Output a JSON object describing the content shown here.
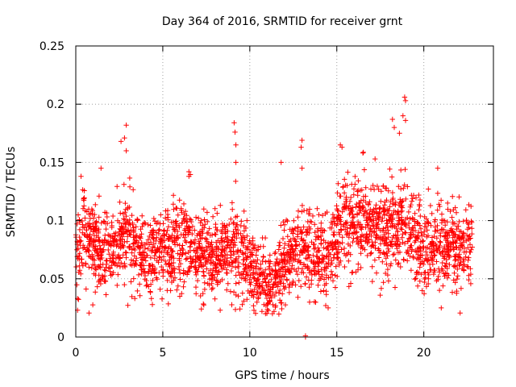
{
  "chart_data": {
    "type": "scatter",
    "title": "Day 364 of 2016, SRMTID for receiver grnt",
    "xlabel": "GPS time / hours",
    "ylabel": "SRMTID / TECUs",
    "xlim": [
      0,
      24
    ],
    "ylim": [
      0,
      0.25
    ],
    "xticks": [
      0,
      5,
      10,
      15,
      20
    ],
    "xtick_labels": [
      "0",
      "5",
      "10",
      "15",
      "20"
    ],
    "yticks": [
      0,
      0.05,
      0.1,
      0.15,
      0.2,
      0.25
    ],
    "ytick_labels": [
      "0",
      "0.05",
      "0.1",
      "0.15",
      "0.2",
      "0.25"
    ],
    "grid": true,
    "marker": "+",
    "color": "#ff0000",
    "series": [
      {
        "name": "SRMTID",
        "profile_hours": [
          0,
          0.5,
          1,
          1.5,
          2,
          2.5,
          3,
          3.5,
          4,
          4.5,
          5,
          5.5,
          6,
          6.5,
          7,
          7.5,
          8,
          8.5,
          9,
          9.5,
          10,
          10.5,
          11,
          11.5,
          12,
          12.5,
          13,
          13.5,
          14,
          14.5,
          15,
          15.5,
          16,
          16.5,
          17,
          17.5,
          18,
          18.5,
          19,
          19.5,
          20,
          20.5,
          21,
          21.5,
          22,
          22.5,
          22.8
        ],
        "profile_mean": [
          0.075,
          0.085,
          0.08,
          0.075,
          0.075,
          0.08,
          0.09,
          0.075,
          0.07,
          0.075,
          0.075,
          0.072,
          0.08,
          0.078,
          0.072,
          0.07,
          0.065,
          0.07,
          0.075,
          0.07,
          0.062,
          0.05,
          0.045,
          0.055,
          0.065,
          0.072,
          0.075,
          0.072,
          0.065,
          0.07,
          0.085,
          0.095,
          0.1,
          0.1,
          0.095,
          0.095,
          0.09,
          0.1,
          0.095,
          0.085,
          0.075,
          0.078,
          0.075,
          0.078,
          0.075,
          0.075,
          0.075
        ],
        "profile_spread": [
          0.028,
          0.03,
          0.03,
          0.028,
          0.03,
          0.032,
          0.035,
          0.03,
          0.028,
          0.028,
          0.028,
          0.028,
          0.03,
          0.03,
          0.028,
          0.028,
          0.026,
          0.026,
          0.03,
          0.028,
          0.026,
          0.022,
          0.022,
          0.024,
          0.026,
          0.028,
          0.03,
          0.028,
          0.026,
          0.028,
          0.03,
          0.032,
          0.032,
          0.032,
          0.032,
          0.032,
          0.03,
          0.035,
          0.032,
          0.03,
          0.028,
          0.028,
          0.028,
          0.028,
          0.028,
          0.028,
          0.028
        ],
        "n_points": 2600,
        "random_seed": 364,
        "notable_points": [
          {
            "x": 0.1,
            "y": 0.023
          },
          {
            "x": 0.1,
            "y": 0.033
          },
          {
            "x": 2.9,
            "y": 0.182
          },
          {
            "x": 2.8,
            "y": 0.171
          },
          {
            "x": 2.6,
            "y": 0.168
          },
          {
            "x": 2.9,
            "y": 0.16
          },
          {
            "x": 9.1,
            "y": 0.184
          },
          {
            "x": 9.15,
            "y": 0.176
          },
          {
            "x": 9.2,
            "y": 0.165
          },
          {
            "x": 9.2,
            "y": 0.15
          },
          {
            "x": 13.0,
            "y": 0.169
          },
          {
            "x": 12.95,
            "y": 0.163
          },
          {
            "x": 13.0,
            "y": 0.145
          },
          {
            "x": 18.9,
            "y": 0.206
          },
          {
            "x": 18.95,
            "y": 0.203
          },
          {
            "x": 18.8,
            "y": 0.19
          },
          {
            "x": 18.95,
            "y": 0.186
          },
          {
            "x": 18.2,
            "y": 0.187
          },
          {
            "x": 18.3,
            "y": 0.18
          },
          {
            "x": 18.6,
            "y": 0.175
          },
          {
            "x": 15.2,
            "y": 0.165
          },
          {
            "x": 15.3,
            "y": 0.163
          },
          {
            "x": 16.5,
            "y": 0.158
          },
          {
            "x": 17.2,
            "y": 0.153
          },
          {
            "x": 6.5,
            "y": 0.142
          },
          {
            "x": 6.5,
            "y": 0.138
          },
          {
            "x": 1.45,
            "y": 0.145
          },
          {
            "x": 0.3,
            "y": 0.138
          },
          {
            "x": 20.8,
            "y": 0.145
          },
          {
            "x": 11.8,
            "y": 0.15
          },
          {
            "x": 10.9,
            "y": 0.02
          },
          {
            "x": 10.7,
            "y": 0.022
          },
          {
            "x": 11.3,
            "y": 0.02
          },
          {
            "x": 21.0,
            "y": 0.025
          },
          {
            "x": 14.5,
            "y": 0.025
          },
          {
            "x": 8.3,
            "y": 0.023
          },
          {
            "x": 13.2,
            "y": 0.0
          },
          {
            "x": 13.2,
            "y": 0.001
          }
        ]
      }
    ]
  }
}
